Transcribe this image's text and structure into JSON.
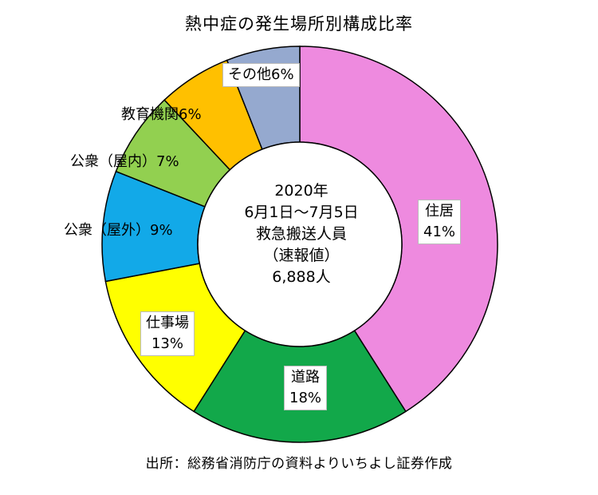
{
  "chart_data": {
    "type": "pie",
    "title": "熱中症の発生場所別構成比率",
    "center_label": [
      "2020年",
      "6月1日～7月5日",
      "救急搬送人員",
      "（速報値）",
      "6,888人"
    ],
    "slices": [
      {
        "label": "住居",
        "value": 41,
        "value_label": "41%",
        "color": "#EE8ADF"
      },
      {
        "label": "道路",
        "value": 18,
        "value_label": "18%",
        "color": "#12A84A"
      },
      {
        "label": "仕事場",
        "value": 13,
        "value_label": "13%",
        "color": "#FFFF00"
      },
      {
        "label": "公衆（屋外）",
        "value": 9,
        "value_label": "9%",
        "color": "#12A9E8"
      },
      {
        "label": "公衆（屋内）",
        "value": 7,
        "value_label": "7%",
        "color": "#92D050"
      },
      {
        "label": "教育機関",
        "value": 6,
        "value_label": "6%",
        "color": "#FFC000"
      },
      {
        "label": "その他",
        "value": 6,
        "value_label": "6%",
        "color": "#95A9CF"
      }
    ],
    "source": "出所：総務省消防庁の資料よりいちよし証券作成"
  }
}
